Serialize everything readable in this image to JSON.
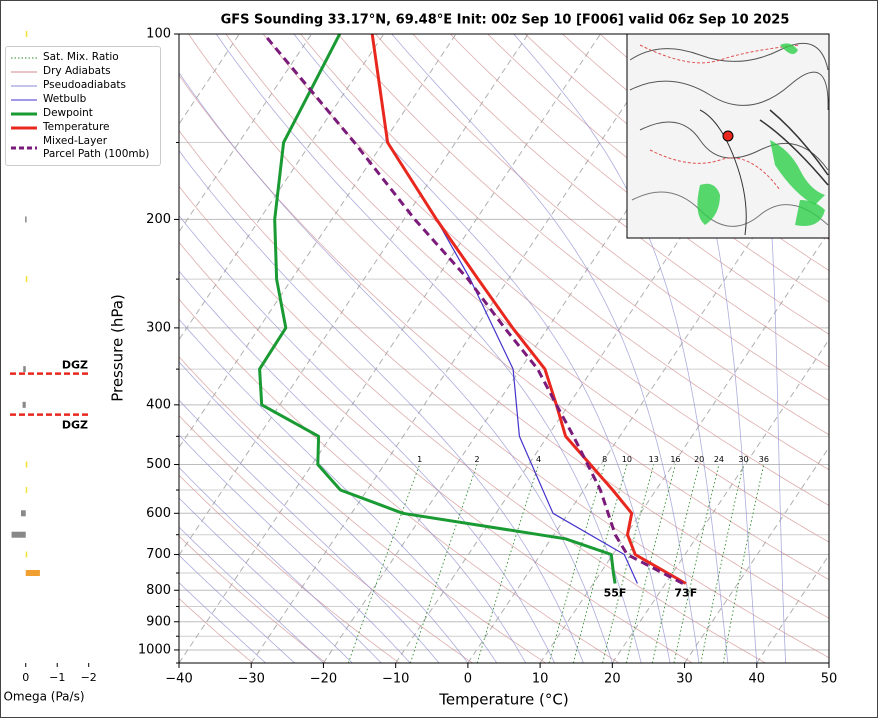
{
  "chart_data": {
    "type": "skewt",
    "title": "GFS Sounding 33.17°N, 69.48°E Init: 00z Sep 10 [F006] valid 06z Sep 10 2025",
    "xlabel": "Temperature (°C)",
    "ylabel": "Pressure (hPa)",
    "log_y": true,
    "xlim": [
      -40,
      50
    ],
    "ylim": [
      1050,
      100
    ],
    "xticks": [
      {
        "value": -40,
        "label": "−40"
      },
      {
        "value": -30,
        "label": "−30"
      },
      {
        "value": -20,
        "label": "−20"
      },
      {
        "value": -10,
        "label": "−10"
      },
      0,
      10,
      20,
      30,
      40,
      50
    ],
    "yticks": [
      100,
      200,
      300,
      400,
      500,
      600,
      700,
      800,
      900,
      1000
    ],
    "minor_yticks": [
      150,
      250,
      350,
      450,
      550,
      650,
      750,
      850,
      950,
      1050
    ],
    "grid": true,
    "mixing_ratios": [
      1,
      2,
      4,
      8,
      10,
      13,
      16,
      20,
      24,
      30,
      36
    ],
    "background_lines": [
      {
        "name": "Sat. Mix. Ratio",
        "color": "#2e8b2e",
        "style": "dotted"
      },
      {
        "name": "Dry Adiabats",
        "color": "#d08a8a",
        "style": "solid"
      },
      {
        "name": "Pseudoadiabats",
        "color": "#8a8ad0",
        "style": "solid"
      }
    ],
    "series": [
      {
        "name": "Wetbulb",
        "color": "#4433cc",
        "style": "thin",
        "pressure": [
          780,
          700,
          600,
          450,
          350,
          250,
          200,
          150,
          100
        ],
        "values": [
          16.1,
          11.6,
          -2.1,
          -13.9,
          -21.0,
          -35.3,
          -45.5,
          -59.4,
          -71.6
        ]
      },
      {
        "name": "Dewpoint",
        "color": "#1a9a33",
        "style": "solid",
        "surface_label": "55F",
        "pressure": [
          780,
          750,
          700,
          660,
          600,
          550,
          500,
          450,
          400,
          350,
          300,
          250,
          200,
          150,
          100
        ],
        "values": [
          13.0,
          11.8,
          9.8,
          2.0,
          -22.9,
          -33.7,
          -39.2,
          -41.7,
          -52.5,
          -56.1,
          -56.3,
          -62.1,
          -67.9,
          -73.8,
          -76.1
        ]
      },
      {
        "name": "Temperature",
        "color": "#e8281e",
        "style": "solid",
        "surface_label": "73F",
        "pressure": [
          780,
          700,
          650,
          600,
          550,
          450,
          400,
          350,
          300,
          250,
          200,
          150,
          100
        ],
        "values": [
          22.8,
          13.1,
          10.2,
          8.8,
          4.0,
          -7.5,
          -11.7,
          -16.6,
          -24.9,
          -34.2,
          -45.5,
          -59.4,
          -71.6
        ]
      },
      {
        "name": "Mixed-Layer\nParcel Path (100mb)",
        "color": "#7a1a7a",
        "style": "dashed",
        "pressure": [
          780,
          700,
          650,
          550,
          450,
          400,
          350,
          300,
          250,
          200,
          150,
          100
        ],
        "values": [
          22.4,
          12.0,
          8.5,
          2.3,
          -6.4,
          -11.7,
          -17.6,
          -26.0,
          -35.6,
          -48.5,
          -64.0,
          -86.6
        ]
      }
    ],
    "omega": {
      "xlabel": "Omega (Pa/s)",
      "xlim": [
        0.5,
        -2.2
      ],
      "xticks": [
        0,
        {
          "value": -1,
          "label": "−1"
        },
        {
          "value": -2,
          "label": "−2"
        }
      ],
      "pressure": [
        100,
        200,
        250,
        350,
        400,
        500,
        550,
        600,
        650,
        700,
        750
      ],
      "values": [
        -0.05,
        0.02,
        -0.05,
        0.08,
        0.1,
        -0.05,
        -0.03,
        0.15,
        0.45,
        -0.03,
        -0.45
      ],
      "colors": [
        "#f2e33a",
        "#888888",
        "#f2e33a",
        "#888888",
        "#888888",
        "#f2e33a",
        "#f2e33a",
        "#888888",
        "#888888",
        "#f2e33a",
        "#f0a030"
      ]
    },
    "dgz": {
      "pressure": [
        356,
        415
      ],
      "labels": [
        "DGZ",
        "DGZ"
      ],
      "color": "#e8281e"
    }
  }
}
